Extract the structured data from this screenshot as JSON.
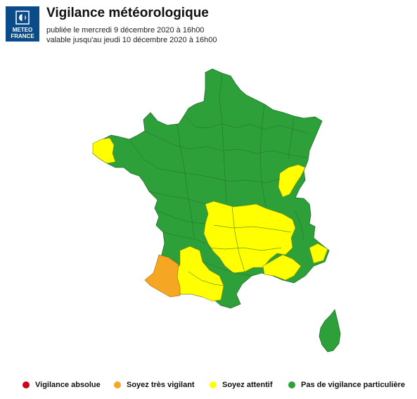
{
  "logo": {
    "line1": "METEO",
    "line2": "FRANCE",
    "color": "#0a4c8a"
  },
  "header": {
    "title": "Vigilance météorologique",
    "published": "publiée le mercredi 9 décembre 2020 à 16h00",
    "valid_until": "valable jusqu'au jeudi 10 décembre 2020 à 16h00"
  },
  "levels": {
    "red": "#d0021b",
    "orange": "#f5a623",
    "yellow": "#ffff00",
    "green": "#2ea03a"
  },
  "map": {
    "regions": [
      {
        "name": "france-mainland",
        "level": "green"
      },
      {
        "name": "brittany-tip",
        "level": "yellow"
      },
      {
        "name": "centre-auvergne-rhone",
        "level": "yellow"
      },
      {
        "name": "southwest",
        "level": "yellow"
      },
      {
        "name": "southeast",
        "level": "yellow"
      },
      {
        "name": "jura-doubs",
        "level": "yellow"
      },
      {
        "name": "landes-pyrenees-atlantiques",
        "level": "orange"
      },
      {
        "name": "corsica",
        "level": "green"
      }
    ]
  },
  "legend": [
    {
      "label": "Vigilance absolue",
      "color": "#d0021b"
    },
    {
      "label": "Soyez très vigilant",
      "color": "#f5a623"
    },
    {
      "label": "Soyez attentif",
      "color": "#ffff00"
    },
    {
      "label": "Pas de vigilance particulière",
      "color": "#2ea03a"
    }
  ]
}
